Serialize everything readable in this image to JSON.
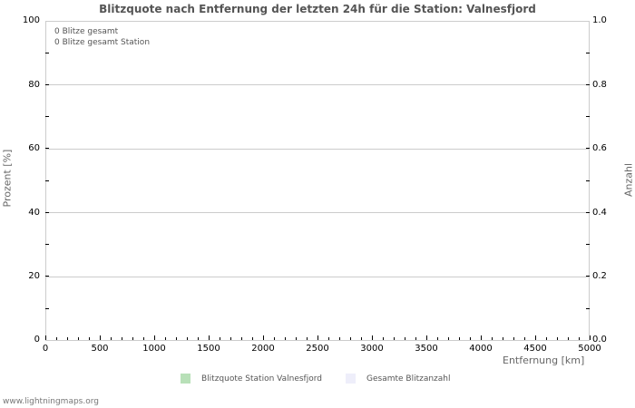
{
  "chart_data": {
    "type": "bar",
    "title": "Blitzquote nach Entfernung der letzten 24h für die Station: Valnesfjord",
    "xlabel": "Entfernung   [km]",
    "ylabel": "Prozent   [%]",
    "y2label": "Anzahl",
    "xlim": [
      0,
      5000
    ],
    "ylim": [
      0,
      100
    ],
    "y2lim": [
      0.0,
      1.0
    ],
    "x_ticks": [
      "0",
      "500",
      "1000",
      "1500",
      "2000",
      "2500",
      "3000",
      "3500",
      "4000",
      "4500",
      "5000"
    ],
    "y_ticks": [
      "0",
      "20",
      "40",
      "60",
      "80",
      "100"
    ],
    "y2_ticks": [
      "0.0",
      "0.2",
      "0.4",
      "0.6",
      "0.8",
      "1.0"
    ],
    "grid": true,
    "series": [
      {
        "name": "Blitzquote Station Valnesfjord",
        "color": "#b8e0b8",
        "values": []
      },
      {
        "name": "Gesamte Blitzanzahl",
        "color": "#eeeefa",
        "values": []
      }
    ],
    "annotations": [
      "0 Blitze gesamt",
      "0 Blitze gesamt Station"
    ],
    "legend_position": "bottom"
  },
  "info": {
    "line1": "0 Blitze gesamt",
    "line2": "0 Blitze gesamt Station"
  },
  "footer": "www.lightningmaps.org"
}
